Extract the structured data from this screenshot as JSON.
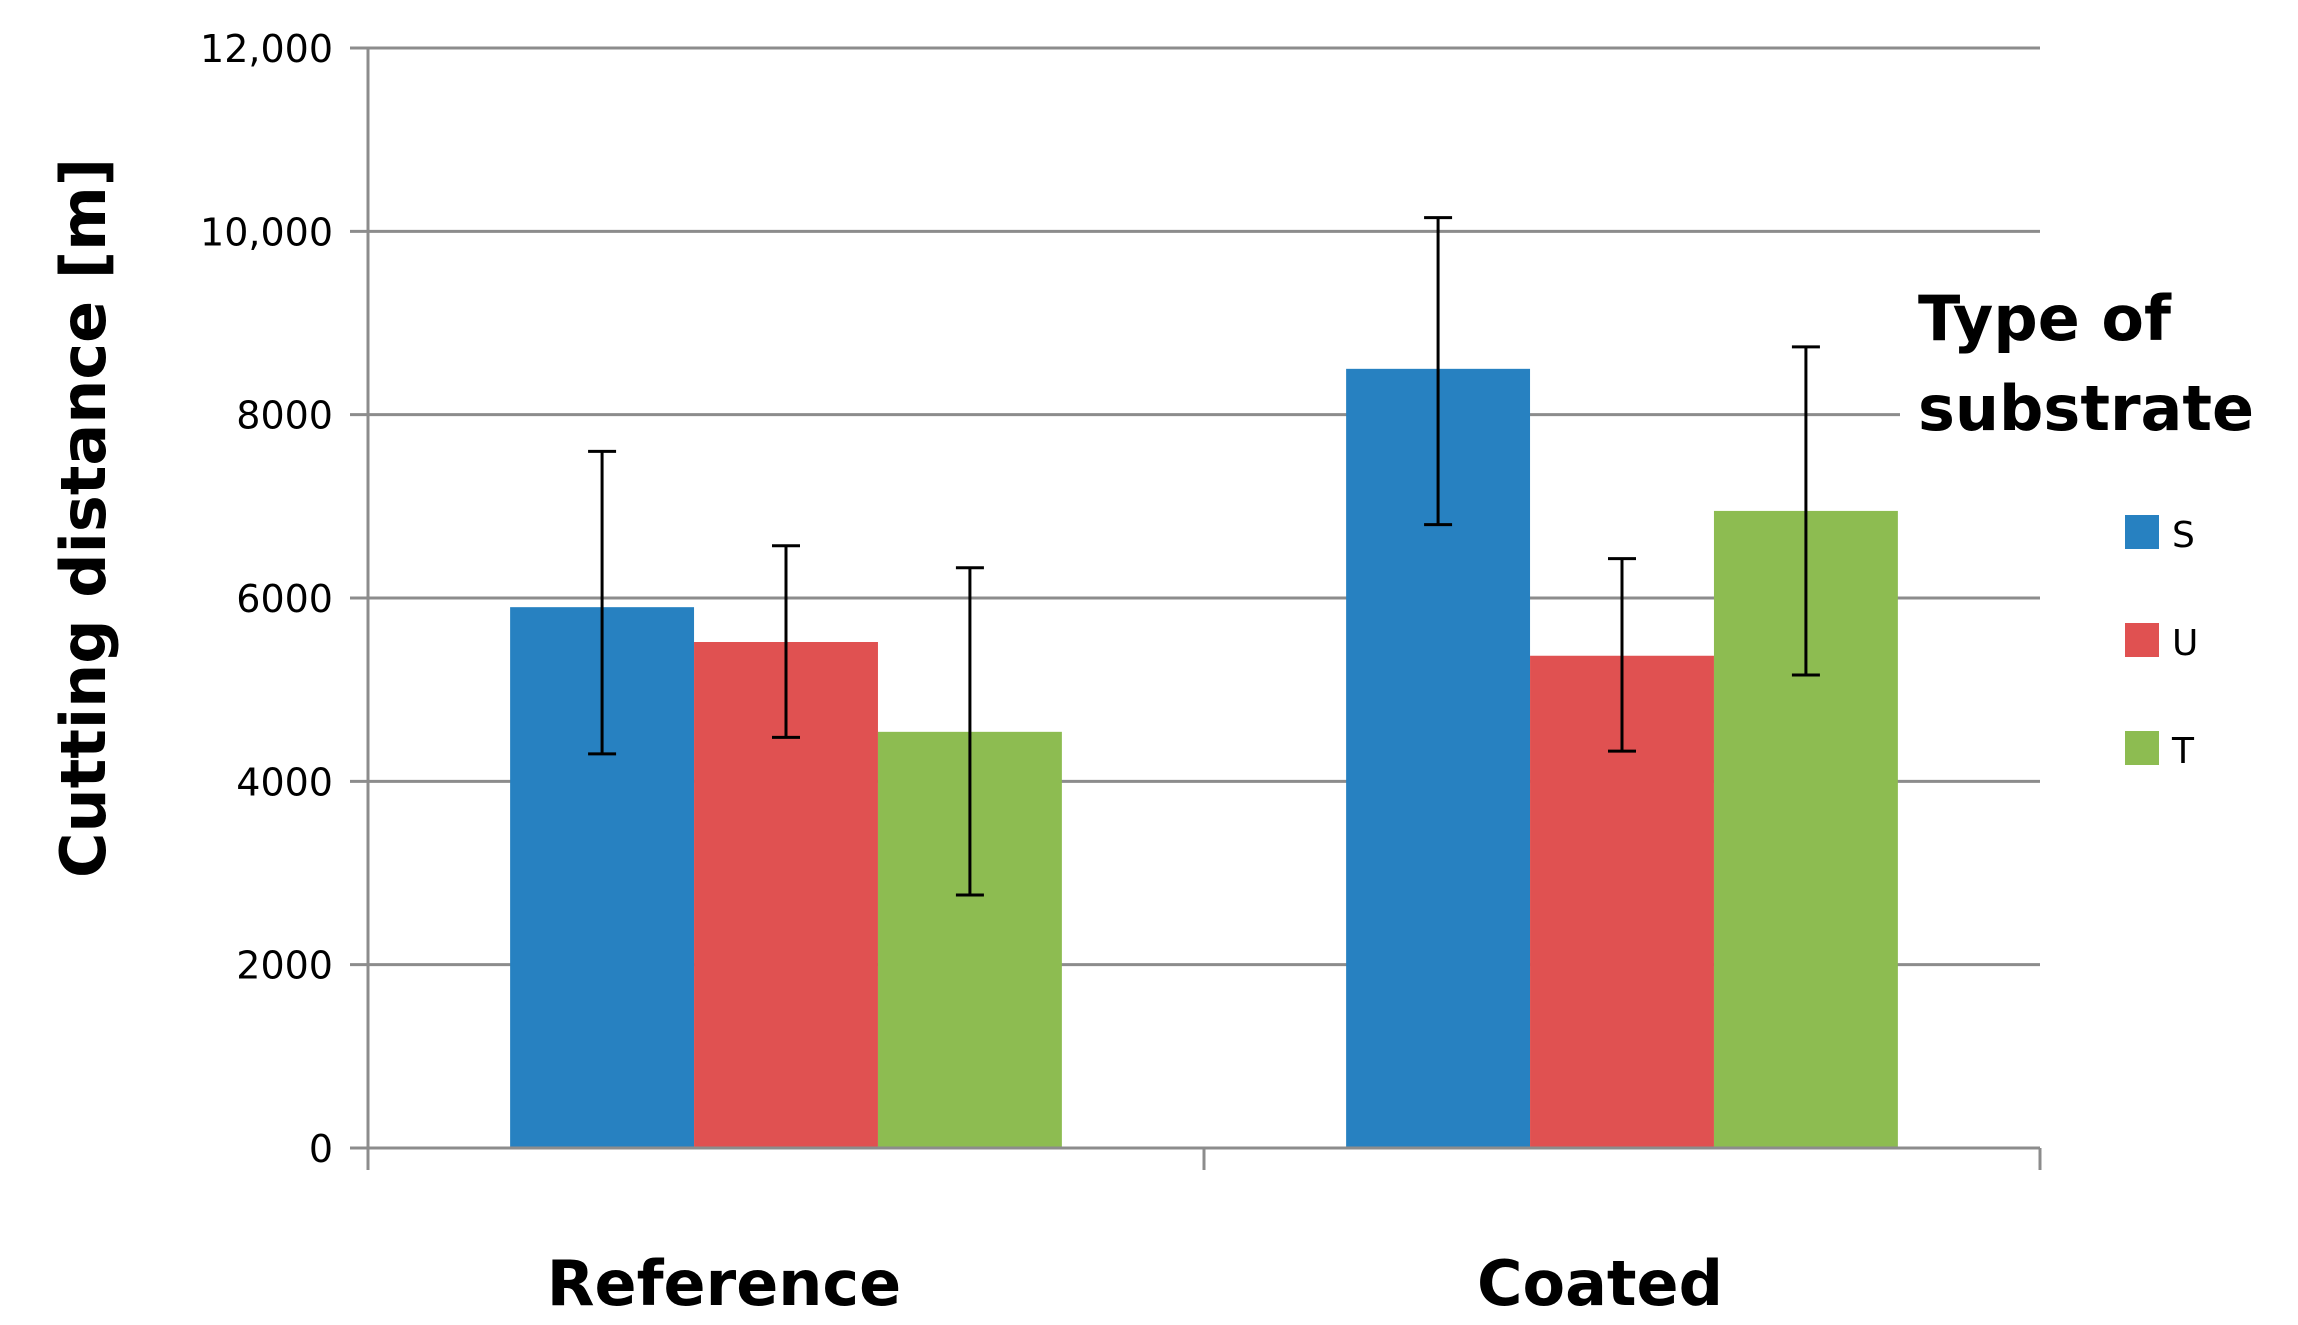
{
  "chart_data": {
    "type": "bar",
    "title": "",
    "xlabel": "",
    "ylabel": "Cutting distance [m]",
    "ylim": [
      0,
      12000
    ],
    "yticks": [
      0,
      2000,
      4000,
      6000,
      8000,
      10000,
      12000
    ],
    "ytick_labels": [
      "0",
      "2000",
      "4000",
      "6000",
      "8000",
      "10,000",
      "12,000"
    ],
    "grid": true,
    "categories": [
      "Reference",
      "Coated"
    ],
    "legend_title": [
      "Type of",
      "substrate"
    ],
    "legend_position": "right",
    "series": [
      {
        "name": "S",
        "color": "#2781C1",
        "values": [
          5900,
          8500
        ],
        "errors": [
          [
            4300,
            7600
          ],
          [
            6800,
            10150
          ]
        ]
      },
      {
        "name": "U",
        "color": "#E05151",
        "values": [
          5520,
          5370
        ],
        "errors": [
          [
            4480,
            6570
          ],
          [
            4330,
            6430
          ]
        ]
      },
      {
        "name": "T",
        "color": "#8DBC51",
        "values": [
          4540,
          6950
        ],
        "errors": [
          [
            2760,
            6330
          ],
          [
            5160,
            8740
          ]
        ]
      }
    ]
  }
}
